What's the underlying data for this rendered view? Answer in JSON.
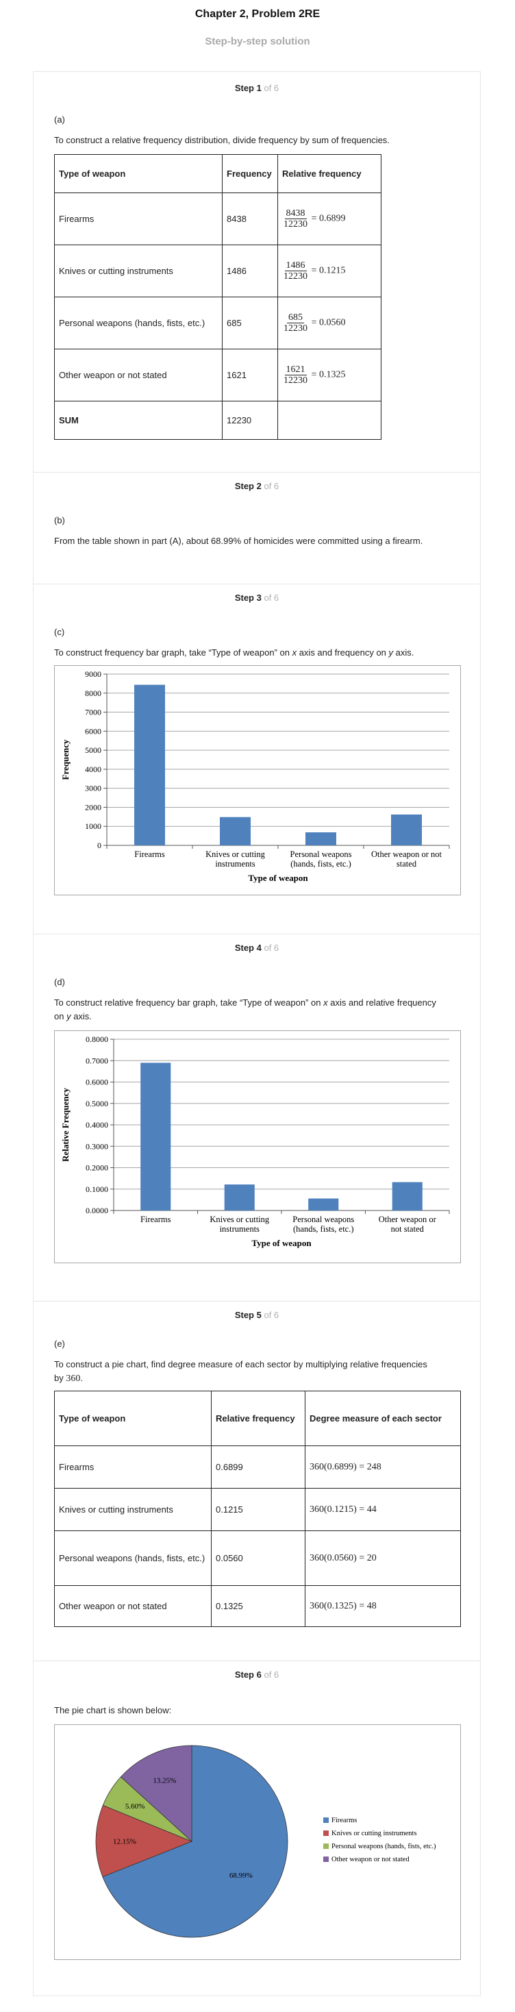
{
  "header": {
    "title": "Chapter 2, Problem 2RE",
    "subtitle": "Step-by-step solution"
  },
  "steps": [
    {
      "label": "Step 1",
      "of": "of 6"
    },
    {
      "label": "Step 2",
      "of": "of 6"
    },
    {
      "label": "Step 3",
      "of": "of 6"
    },
    {
      "label": "Step 4",
      "of": "of 6"
    },
    {
      "label": "Step 5",
      "of": "of 6"
    },
    {
      "label": "Step 6",
      "of": "of 6"
    }
  ],
  "step1": {
    "part": "(a)",
    "text": "To construct a relative frequency distribution, divide frequency by sum of frequencies.",
    "headers": [
      "Type of weapon",
      "Frequency",
      "Relative frequency"
    ],
    "rows": [
      {
        "type": "Firearms",
        "freq": "8438",
        "num": "8438",
        "den": "12230",
        "result": "= 0.6899"
      },
      {
        "type": "Knives or cutting instruments",
        "freq": "1486",
        "num": "1486",
        "den": "12230",
        "result": "= 0.1215"
      },
      {
        "type": "Personal weapons (hands, fists, etc.)",
        "freq": "685",
        "num": "685",
        "den": "12230",
        "result": "= 0.0560"
      },
      {
        "type": "Other weapon or not stated",
        "freq": "1621",
        "num": "1621",
        "den": "12230",
        "result": "= 0.1325"
      }
    ],
    "sum_label": "SUM",
    "sum_value": "12230"
  },
  "step2": {
    "part": "(b)",
    "text": "From the table shown in part (A), about 68.99% of homicides were committed using a firearm."
  },
  "step3": {
    "part": "(c)",
    "text_a": "To construct frequency bar graph, take “Type of weapon” on ",
    "text_x": "x",
    "text_b": " axis and frequency on ",
    "text_y": "y",
    "text_c": " axis."
  },
  "step4": {
    "part": "(d)",
    "text_a": "To construct relative frequency bar graph, take “Type of weapon” on ",
    "text_x": "x",
    "text_b": " axis and relative frequency on ",
    "text_y": "y",
    "text_c": " axis."
  },
  "step5": {
    "part": "(e)",
    "text_a": "To construct a pie chart, find degree measure of each sector by multiplying relative frequencies by ",
    "mult": "360",
    "text_end": ".",
    "headers": [
      "Type of weapon",
      "Relative frequency",
      "Degree measure of each sector"
    ],
    "rows": [
      {
        "type": "Firearms",
        "rel": "0.6899",
        "deg": "360(0.6899) = 248"
      },
      {
        "type": "Knives or cutting instruments",
        "rel": "0.1215",
        "deg": "360(0.1215) = 44"
      },
      {
        "type": "Personal weapons (hands, fists, etc.)",
        "rel": "0.0560",
        "deg": "360(0.0560) = 20"
      },
      {
        "type": "Other weapon or not stated",
        "rel": "0.1325",
        "deg": "360(0.1325) = 48"
      }
    ]
  },
  "step6": {
    "text": "The pie chart is shown below:"
  },
  "colors": {
    "bar": "#4f81bd",
    "firearms": "#4f81bd",
    "knives": "#c0504d",
    "personal": "#9bbb59",
    "other": "#8064a2",
    "grid": "#a6a6a6"
  },
  "chart_data": [
    {
      "type": "bar",
      "categories": [
        "Firearms",
        "Knives or cutting instruments",
        "Personal weapons (hands, fists, etc.)",
        "Other weapon or not stated"
      ],
      "category_lines": [
        [
          "Firearms"
        ],
        [
          "Knives or cutting",
          "instruments"
        ],
        [
          "Personal weapons",
          "(hands, fists, etc.)"
        ],
        [
          "Other weapon or not",
          "stated"
        ]
      ],
      "values": [
        8438,
        1486,
        685,
        1621
      ],
      "xlabel": "Type of weapon",
      "ylabel": "Frequency",
      "ylim": [
        0,
        9000
      ],
      "yticks": [
        "0",
        "1000",
        "2000",
        "3000",
        "4000",
        "5000",
        "6000",
        "7000",
        "8000",
        "9000"
      ],
      "grid": true
    },
    {
      "type": "bar",
      "categories": [
        "Firearms",
        "Knives or cutting instruments",
        "Personal weapons (hands, fists, etc.)",
        "Other weapon or not stated"
      ],
      "category_lines": [
        [
          "Firearms"
        ],
        [
          "Knives or cutting",
          "instruments"
        ],
        [
          "Personal weapons",
          "(hands, fists, etc.)"
        ],
        [
          "Other weapon or",
          "not stated"
        ]
      ],
      "values": [
        0.6899,
        0.1215,
        0.056,
        0.1325
      ],
      "xlabel": "Type of weapon",
      "ylabel": "Relative Frequency",
      "ylim": [
        0,
        0.8
      ],
      "yticks": [
        "0.0000",
        "0.1000",
        "0.2000",
        "0.3000",
        "0.4000",
        "0.5000",
        "0.6000",
        "0.7000",
        "0.8000"
      ],
      "grid": true
    },
    {
      "type": "pie",
      "categories": [
        "Firearms",
        "Knives or cutting instruments",
        "Personal weapons (hands, fists, etc.)",
        "Other weapon or not stated"
      ],
      "values": [
        68.99,
        12.15,
        5.6,
        13.25
      ],
      "labels": [
        "68.99%",
        "12.15%",
        "5.60%",
        "13.25%"
      ],
      "legend": "right"
    }
  ]
}
